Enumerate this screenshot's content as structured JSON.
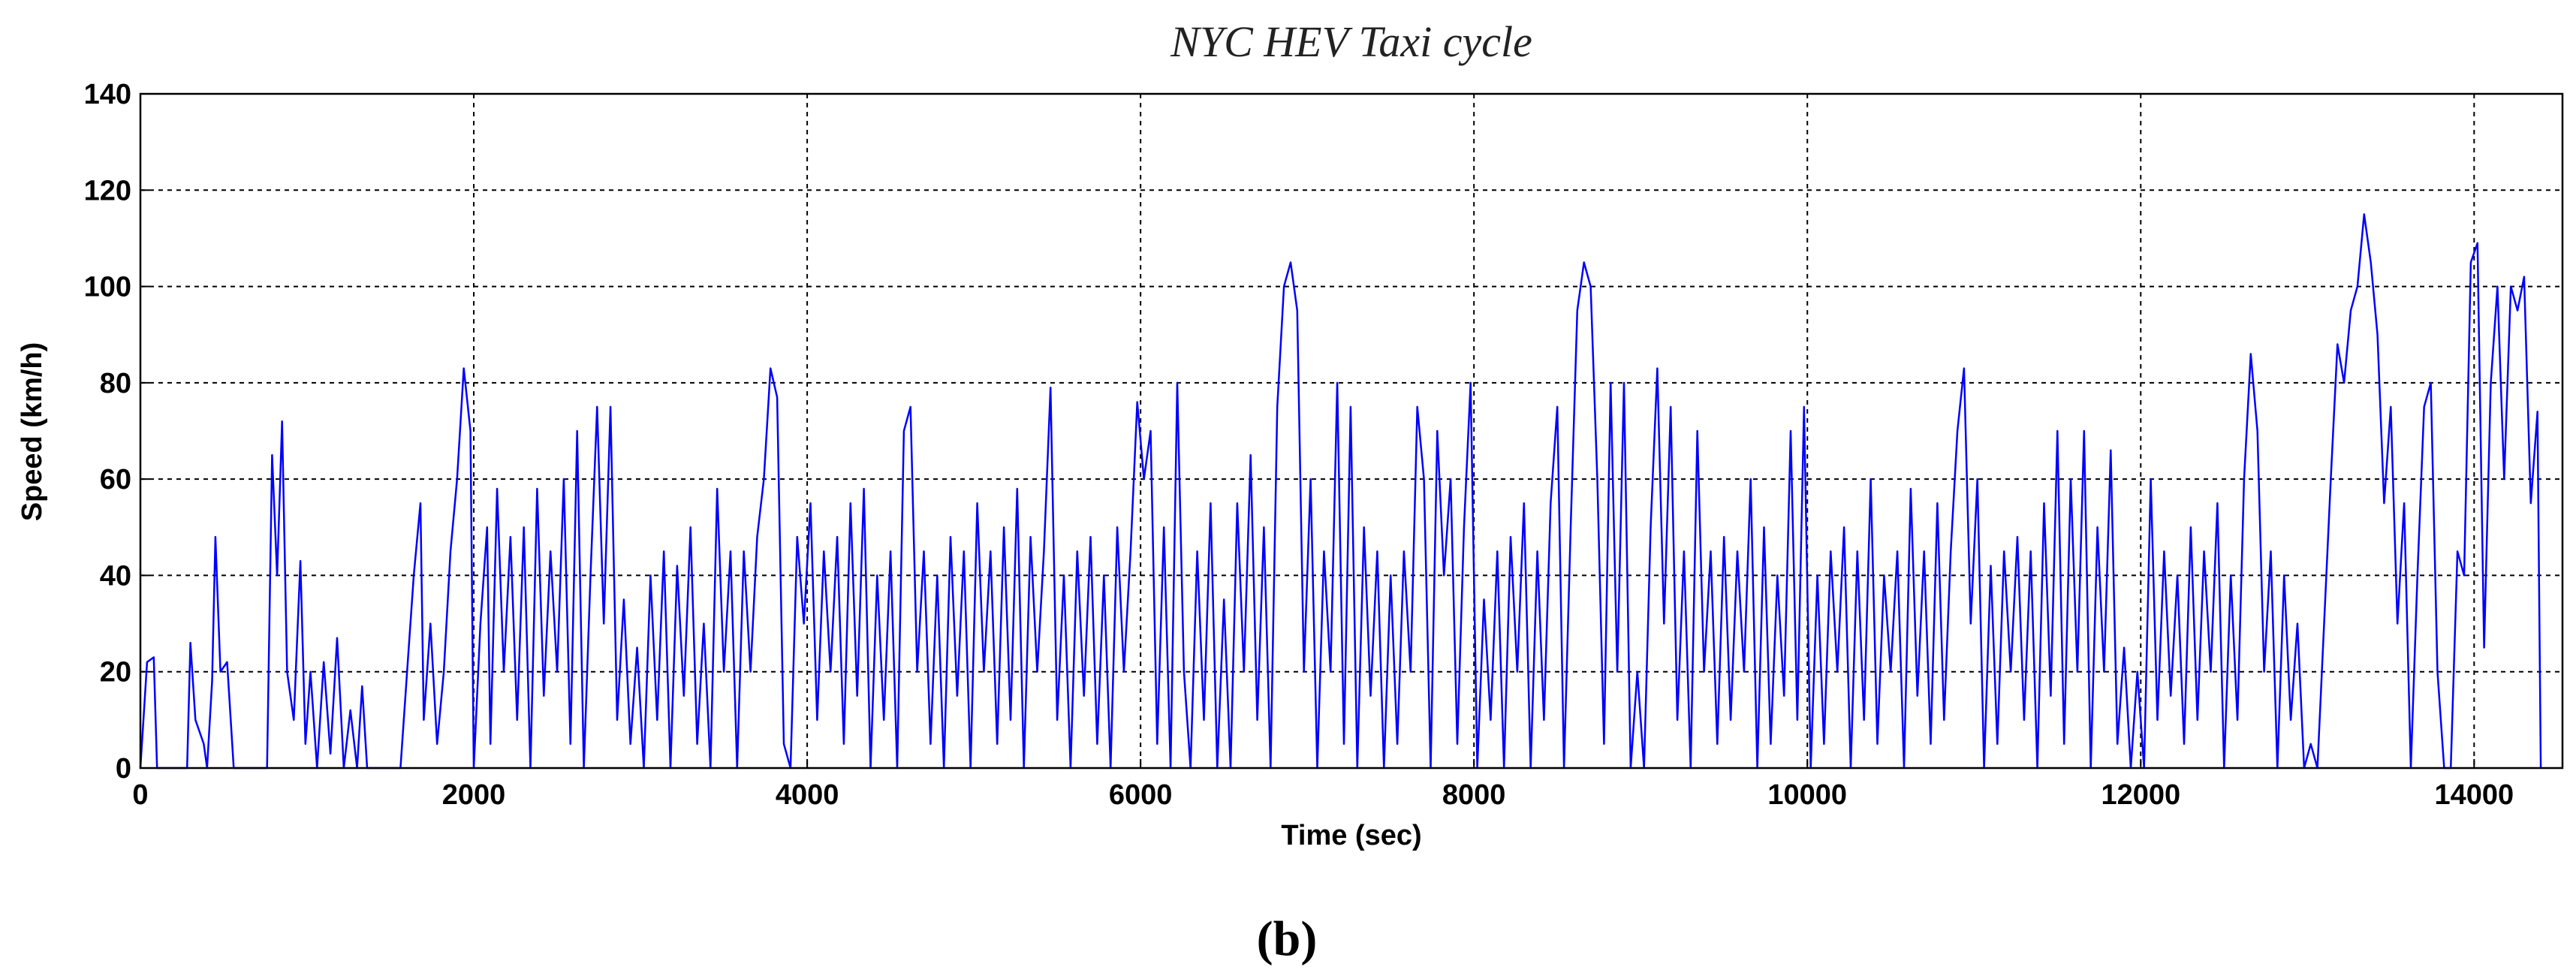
{
  "chart_data": {
    "type": "line",
    "title": "NYC HEV Taxi cycle",
    "x_label": "Time (sec)",
    "y_label": "Speed (km/h)",
    "caption": "(b)",
    "color": "#0000ff",
    "grid": true,
    "xlim": [
      0,
      14530
    ],
    "ylim": [
      0,
      140
    ],
    "xticks": [
      0,
      2000,
      4000,
      6000,
      8000,
      10000,
      12000,
      14000
    ],
    "yticks": [
      0,
      20,
      40,
      60,
      80,
      100,
      120,
      140
    ],
    "x": [
      0,
      40,
      80,
      100,
      280,
      300,
      330,
      380,
      400,
      430,
      450,
      480,
      520,
      560,
      760,
      790,
      820,
      850,
      880,
      920,
      960,
      990,
      1020,
      1060,
      1100,
      1140,
      1180,
      1220,
      1260,
      1300,
      1330,
      1360,
      1560,
      1600,
      1640,
      1680,
      1700,
      1740,
      1780,
      1820,
      1860,
      1900,
      1940,
      1980,
      2000,
      2040,
      2080,
      2100,
      2140,
      2180,
      2220,
      2260,
      2300,
      2340,
      2380,
      2420,
      2460,
      2500,
      2540,
      2580,
      2620,
      2660,
      2700,
      2740,
      2780,
      2820,
      2860,
      2900,
      2940,
      2980,
      3020,
      3060,
      3100,
      3140,
      3180,
      3220,
      3260,
      3300,
      3340,
      3380,
      3420,
      3460,
      3500,
      3540,
      3580,
      3620,
      3660,
      3700,
      3740,
      3780,
      3820,
      3860,
      3900,
      3940,
      3980,
      4020,
      4060,
      4100,
      4140,
      4180,
      4220,
      4260,
      4300,
      4340,
      4380,
      4420,
      4460,
      4500,
      4540,
      4580,
      4620,
      4660,
      4700,
      4740,
      4780,
      4820,
      4860,
      4900,
      4940,
      4980,
      5020,
      5060,
      5100,
      5140,
      5180,
      5220,
      5260,
      5300,
      5340,
      5380,
      5420,
      5460,
      5500,
      5540,
      5580,
      5620,
      5660,
      5700,
      5740,
      5780,
      5820,
      5860,
      5900,
      5940,
      5980,
      6020,
      6060,
      6100,
      6140,
      6180,
      6220,
      6260,
      6300,
      6340,
      6380,
      6420,
      6460,
      6500,
      6540,
      6580,
      6620,
      6660,
      6700,
      6740,
      6780,
      6820,
      6860,
      6900,
      6940,
      6980,
      7020,
      7060,
      7100,
      7140,
      7180,
      7220,
      7260,
      7300,
      7340,
      7380,
      7420,
      7460,
      7500,
      7540,
      7580,
      7620,
      7660,
      7700,
      7740,
      7780,
      7820,
      7860,
      7900,
      7940,
      7980,
      8020,
      8060,
      8100,
      8140,
      8180,
      8220,
      8260,
      8300,
      8340,
      8380,
      8420,
      8460,
      8500,
      8540,
      8580,
      8620,
      8660,
      8700,
      8740,
      8780,
      8820,
      8860,
      8900,
      8940,
      8980,
      9020,
      9060,
      9100,
      9140,
      9180,
      9220,
      9260,
      9300,
      9340,
      9380,
      9420,
      9460,
      9500,
      9540,
      9580,
      9620,
      9660,
      9700,
      9740,
      9780,
      9820,
      9860,
      9900,
      9940,
      9980,
      10020,
      10060,
      10100,
      10140,
      10180,
      10220,
      10260,
      10300,
      10340,
      10380,
      10420,
      10460,
      10500,
      10540,
      10580,
      10620,
      10660,
      10700,
      10740,
      10780,
      10820,
      10860,
      10900,
      10940,
      10980,
      11020,
      11060,
      11100,
      11140,
      11180,
      11220,
      11260,
      11300,
      11340,
      11380,
      11420,
      11460,
      11500,
      11540,
      11580,
      11620,
      11660,
      11700,
      11740,
      11780,
      11820,
      11860,
      11900,
      11940,
      11980,
      12020,
      12060,
      12100,
      12140,
      12180,
      12220,
      12260,
      12300,
      12340,
      12380,
      12420,
      12460,
      12500,
      12540,
      12580,
      12620,
      12660,
      12700,
      12740,
      12780,
      12820,
      12860,
      12900,
      12940,
      12980,
      13020,
      13060,
      13100,
      13140,
      13180,
      13220,
      13260,
      13300,
      13340,
      13380,
      13420,
      13460,
      13500,
      13540,
      13580,
      13620,
      13660,
      13700,
      13740,
      13780,
      13820,
      13860,
      13900,
      13940,
      13980,
      14020,
      14060,
      14100,
      14140,
      14180,
      14220,
      14260,
      14300,
      14340,
      14380,
      14400
    ],
    "values": [
      0,
      22,
      23,
      0,
      0,
      26,
      10,
      5,
      0,
      18,
      48,
      20,
      22,
      0,
      0,
      65,
      40,
      72,
      20,
      10,
      43,
      5,
      20,
      0,
      22,
      3,
      27,
      0,
      12,
      0,
      17,
      0,
      0,
      20,
      40,
      55,
      10,
      30,
      5,
      20,
      45,
      60,
      83,
      70,
      0,
      30,
      50,
      5,
      58,
      20,
      48,
      10,
      50,
      0,
      58,
      15,
      45,
      20,
      60,
      5,
      70,
      0,
      40,
      75,
      30,
      75,
      10,
      35,
      5,
      25,
      0,
      40,
      10,
      45,
      0,
      42,
      15,
      50,
      5,
      30,
      0,
      58,
      20,
      45,
      0,
      45,
      20,
      48,
      60,
      83,
      77,
      5,
      0,
      48,
      30,
      55,
      10,
      45,
      20,
      48,
      5,
      55,
      15,
      58,
      0,
      40,
      10,
      45,
      0,
      70,
      75,
      20,
      45,
      5,
      40,
      0,
      48,
      15,
      45,
      0,
      55,
      20,
      45,
      5,
      50,
      10,
      58,
      0,
      48,
      20,
      45,
      79,
      10,
      40,
      0,
      45,
      15,
      48,
      5,
      40,
      0,
      50,
      20,
      45,
      76,
      60,
      70,
      5,
      50,
      0,
      80,
      20,
      0,
      45,
      10,
      55,
      0,
      35,
      0,
      55,
      20,
      65,
      10,
      50,
      0,
      75,
      100,
      105,
      95,
      20,
      60,
      0,
      45,
      20,
      80,
      5,
      75,
      0,
      50,
      15,
      45,
      0,
      40,
      5,
      45,
      20,
      75,
      60,
      0,
      70,
      40,
      60,
      5,
      50,
      80,
      0,
      35,
      10,
      45,
      0,
      48,
      20,
      55,
      0,
      45,
      10,
      55,
      75,
      0,
      50,
      95,
      105,
      100,
      60,
      5,
      80,
      20,
      80,
      0,
      20,
      0,
      50,
      83,
      30,
      75,
      10,
      45,
      0,
      70,
      20,
      45,
      5,
      48,
      10,
      45,
      20,
      60,
      0,
      50,
      5,
      40,
      15,
      70,
      10,
      75,
      0,
      40,
      5,
      45,
      20,
      50,
      0,
      45,
      10,
      60,
      5,
      40,
      20,
      45,
      0,
      58,
      15,
      45,
      5,
      55,
      10,
      45,
      70,
      83,
      30,
      60,
      0,
      42,
      5,
      45,
      20,
      48,
      10,
      45,
      0,
      55,
      15,
      70,
      5,
      60,
      20,
      70,
      0,
      50,
      20,
      66,
      5,
      25,
      0,
      20,
      0,
      60,
      10,
      45,
      15,
      40,
      5,
      50,
      10,
      45,
      20,
      55,
      0,
      40,
      10,
      60,
      86,
      70,
      20,
      45,
      0,
      40,
      10,
      30,
      0,
      5,
      0,
      30,
      60,
      88,
      80,
      95,
      100,
      115,
      105,
      90,
      55,
      75,
      30,
      55,
      0,
      40,
      75,
      80,
      20,
      0,
      0,
      45,
      40,
      105,
      109,
      25,
      80,
      100,
      60,
      100,
      95,
      102,
      55,
      74,
      0
    ]
  }
}
